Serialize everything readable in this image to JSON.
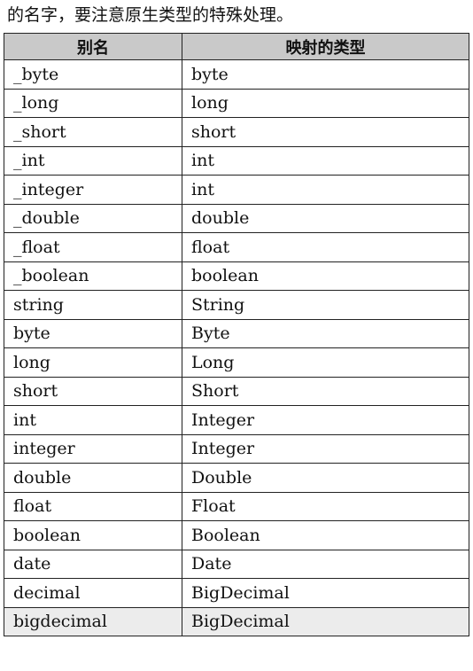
{
  "intro_text": "的名字，要注意原生类型的特殊处理。",
  "table": {
    "headers": [
      "别名",
      "映射的类型"
    ],
    "rows": [
      [
        "_byte",
        "byte"
      ],
      [
        "_long",
        "long"
      ],
      [
        "_short",
        "short"
      ],
      [
        "_int",
        "int"
      ],
      [
        "_integer",
        "int"
      ],
      [
        "_double",
        "double"
      ],
      [
        "_float",
        "float"
      ],
      [
        "_boolean",
        "boolean"
      ],
      [
        "string",
        "String"
      ],
      [
        "byte",
        "Byte"
      ],
      [
        "long",
        "Long"
      ],
      [
        "short",
        "Short"
      ],
      [
        "int",
        "Integer"
      ],
      [
        "integer",
        "Integer"
      ],
      [
        "double",
        "Double"
      ],
      [
        "float",
        "Float"
      ],
      [
        "boolean",
        "Boolean"
      ],
      [
        "date",
        "Date"
      ],
      [
        "decimal",
        "BigDecimal"
      ],
      [
        "bigdecimal",
        "BigDecimal"
      ]
    ]
  }
}
